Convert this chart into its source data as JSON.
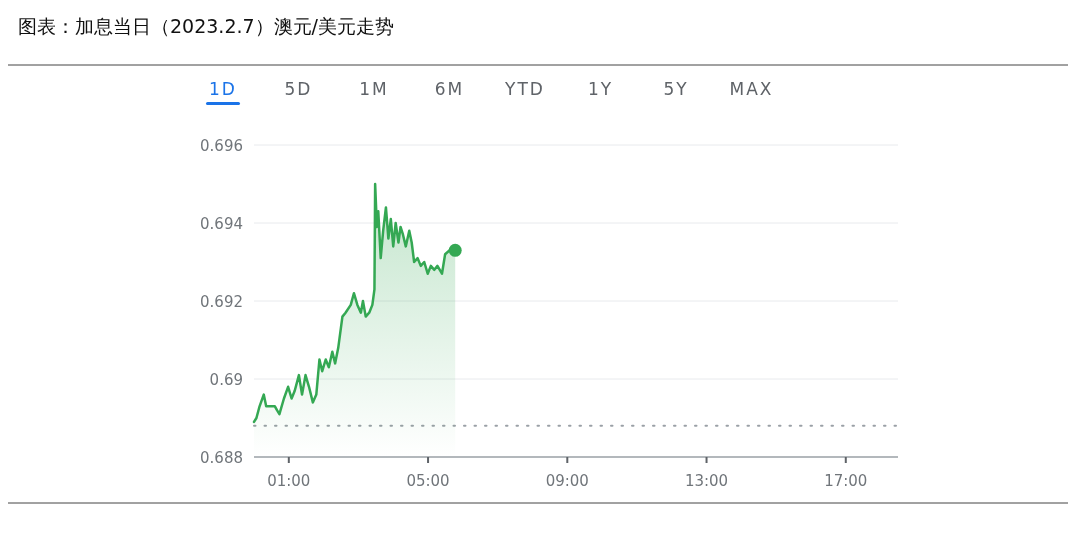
{
  "chart_data": {
    "type": "area",
    "title": "图表：加息当日（2023.2.7）澳元/美元走势",
    "annotations": [
      "1D",
      "5D",
      "1M",
      "6M",
      "YTD",
      "1Y",
      "5Y",
      "MAX"
    ],
    "xlim": [
      0,
      18.5
    ],
    "xticks": [
      {
        "value": 1,
        "label": "01:00"
      },
      {
        "value": 5,
        "label": "05:00"
      },
      {
        "value": 9,
        "label": "09:00"
      },
      {
        "value": 13,
        "label": "13:00"
      },
      {
        "value": 17,
        "label": "17:00"
      }
    ],
    "ylim": [
      0.688,
      0.696
    ],
    "yticks": [
      0.688,
      0.69,
      0.692,
      0.694,
      0.696
    ],
    "grid": "y",
    "ref_lines": [
      {
        "axis": "y",
        "value": 0.6888,
        "color": "#9aa0a6",
        "line_style": "dotted"
      }
    ],
    "series": [
      {
        "color": "#34a853",
        "x": [
          0.0,
          0.07,
          0.16,
          0.28,
          0.35,
          0.47,
          0.6,
          0.66,
          0.73,
          0.86,
          0.98,
          1.08,
          1.17,
          1.29,
          1.38,
          1.48,
          1.58,
          1.69,
          1.79,
          1.88,
          1.96,
          2.06,
          2.15,
          2.25,
          2.33,
          2.42,
          2.54,
          2.63,
          2.78,
          2.87,
          2.97,
          3.07,
          3.13,
          3.21,
          3.31,
          3.4,
          3.46,
          3.48,
          3.53,
          3.57,
          3.64,
          3.71,
          3.79,
          3.86,
          3.93,
          4.0,
          4.07,
          4.15,
          4.21,
          4.28,
          4.36,
          4.46,
          4.53,
          4.6,
          4.7,
          4.79,
          4.89,
          4.99,
          5.08,
          5.18,
          5.27,
          5.4,
          5.49,
          5.62,
          5.78
        ],
        "values": [
          0.6889,
          0.689,
          0.6893,
          0.6896,
          0.6893,
          0.6893,
          0.6893,
          0.6892,
          0.6891,
          0.6895,
          0.6898,
          0.6895,
          0.6897,
          0.6901,
          0.6896,
          0.6901,
          0.6898,
          0.6894,
          0.6896,
          0.6905,
          0.6902,
          0.6905,
          0.6903,
          0.6907,
          0.6904,
          0.6908,
          0.6916,
          0.6917,
          0.6919,
          0.6922,
          0.6919,
          0.6917,
          0.692,
          0.6916,
          0.6917,
          0.6919,
          0.6923,
          0.695,
          0.6939,
          0.6943,
          0.6931,
          0.6938,
          0.6944,
          0.6936,
          0.6941,
          0.6934,
          0.694,
          0.6935,
          0.6939,
          0.6937,
          0.6934,
          0.6938,
          0.6935,
          0.693,
          0.6931,
          0.6929,
          0.693,
          0.6927,
          0.6929,
          0.6928,
          0.6929,
          0.6927,
          0.6932,
          0.6933,
          0.6933
        ]
      },
      {
        "type": "scatter",
        "color": "#34a853",
        "marker": "circle",
        "x": [
          5.78
        ],
        "values": [
          0.6933
        ]
      }
    ]
  }
}
